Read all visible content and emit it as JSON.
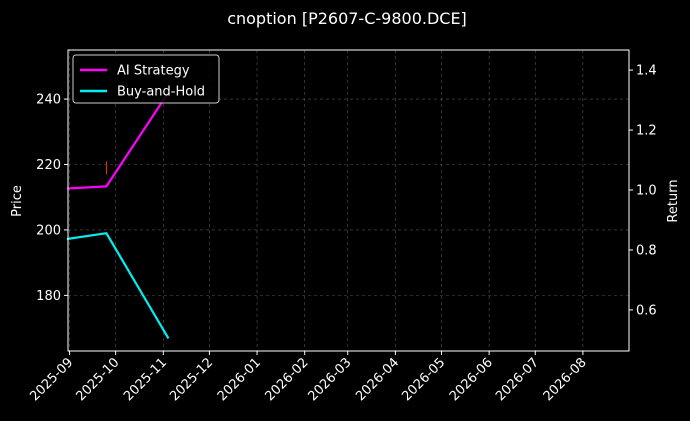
{
  "chart_data": {
    "type": "line",
    "title": "cnoption [P2607-C-9800.DCE]",
    "ylabel_left": "Price",
    "ylabel_right": "Return",
    "x_tick_labels": [
      "2025-09",
      "2025-10",
      "2025-11",
      "2025-12",
      "2026-01",
      "2026-02",
      "2026-03",
      "2026-04",
      "2026-05",
      "2026-06",
      "2026-07",
      "2026-08"
    ],
    "xlim": [
      "2025-08-31",
      "2026-08-31"
    ],
    "ylim_left": [
      163,
      255
    ],
    "ylim_right": [
      0.463,
      1.467
    ],
    "yticks_left": [
      180,
      200,
      220,
      240
    ],
    "yticks_right": [
      0.6,
      0.8,
      1.0,
      1.2,
      1.4
    ],
    "grid": true,
    "legend_position": "top-left",
    "series": [
      {
        "name": "AI Strategy",
        "axis": "right",
        "color": "#ff00ff",
        "x": [
          "2025-08-31",
          "2025-09-25",
          "2025-11-04"
        ],
        "y": [
          1.005,
          1.012,
          1.323
        ]
      },
      {
        "name": "Buy-and-Hold",
        "axis": "right",
        "color": "#00f0f0",
        "x": [
          "2025-08-31",
          "2025-09-25",
          "2025-11-04"
        ],
        "y": [
          0.837,
          0.856,
          0.508
        ]
      }
    ],
    "markers": [
      {
        "type": "tick",
        "axis": "left",
        "color": "#ff3300",
        "x": "2025-09-25",
        "y_range": [
          217,
          221
        ]
      }
    ]
  }
}
